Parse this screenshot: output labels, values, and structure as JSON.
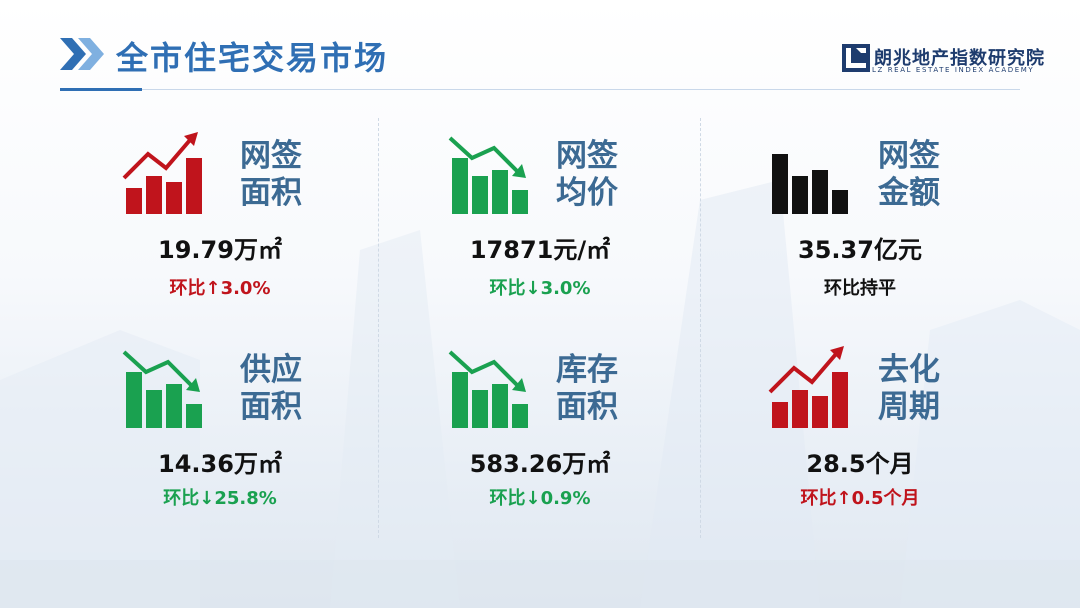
{
  "header": {
    "title": "全市住宅交易市场",
    "logo_cn": "朗兆地产指数研究院",
    "logo_en": "LZ REAL ESTATE INDEX ACADEMY",
    "accent_color": "#2f6fb4"
  },
  "metrics": [
    {
      "label_line1": "网签",
      "label_line2": "面积",
      "value": "19.79万㎡",
      "change": "环比↑3.0%",
      "trend": "up",
      "icon": "trend-up-icon",
      "color": "#c0141c"
    },
    {
      "label_line1": "网签",
      "label_line2": "均价",
      "value": "17871元/㎡",
      "change": "环比↓3.0%",
      "trend": "down",
      "icon": "trend-down-icon",
      "color": "#1aa150"
    },
    {
      "label_line1": "网签",
      "label_line2": "金额",
      "value": "35.37亿元",
      "change": "环比持平",
      "trend": "flat",
      "icon": "bar-chart-icon",
      "color": "#111111"
    },
    {
      "label_line1": "供应",
      "label_line2": "面积",
      "value": "14.36万㎡",
      "change": "环比↓25.8%",
      "trend": "down",
      "icon": "trend-down-icon",
      "color": "#1aa150"
    },
    {
      "label_line1": "库存",
      "label_line2": "面积",
      "value": "583.26万㎡",
      "change": "环比↓0.9%",
      "trend": "down",
      "icon": "trend-down-icon",
      "color": "#1aa150"
    },
    {
      "label_line1": "去化",
      "label_line2": "周期",
      "value": "28.5个月",
      "change": "环比↑0.5个月",
      "trend": "up",
      "icon": "trend-up-icon",
      "color": "#c0141c"
    }
  ]
}
